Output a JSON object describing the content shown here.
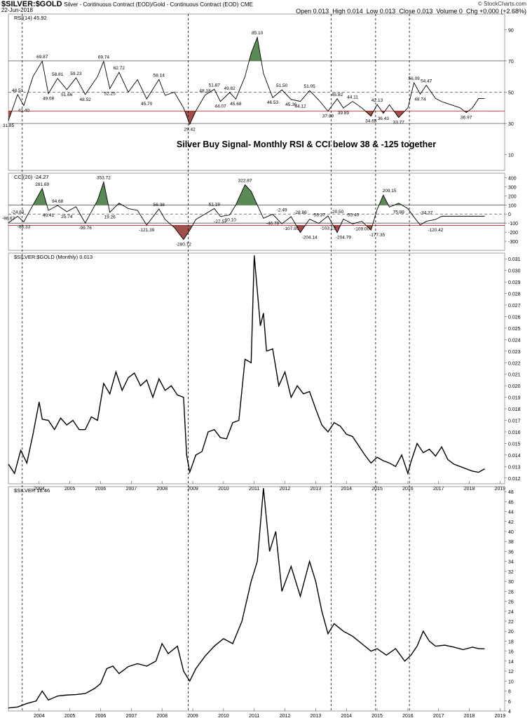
{
  "header": {
    "symbol": "$SILVER:$GOLD",
    "description": "Silver - Continuous Contract (EOD)/Gold - Continuous Contract (EOD)",
    "exchange": "CME",
    "date": "22-Jun-2018",
    "open": "Open 0.013",
    "high": "High 0.014",
    "low": "Low 0.013",
    "close": "Close 0.013",
    "volume": "Volume 0",
    "chg": "Chg +0.000 (+2.68%)",
    "credit": "© StockCharts.com"
  },
  "annotation": "Silver Buy Signal- Monthly RSI & CCI below 38 & -125 together",
  "colors": {
    "line": "#000000",
    "green_fill": "#5a8a55",
    "red_fill": "#a0504a",
    "red_line": "#c00000",
    "grid": "#dddddd"
  },
  "signal_years": [
    2003.45,
    2008.85,
    2013.5,
    2014.95,
    2016.05
  ],
  "chart_data": [
    {
      "type": "line",
      "name": "RSI",
      "title": "RSI(14) 45.92",
      "ylim": [
        0,
        100
      ],
      "yticks": [
        10,
        30,
        50,
        70,
        90
      ],
      "levels": [
        30,
        38,
        50,
        70
      ],
      "x": [
        2003.0,
        2003.3,
        2003.5,
        2003.8,
        2004.1,
        2004.3,
        2004.6,
        2004.9,
        2005.2,
        2005.5,
        2005.9,
        2006.1,
        2006.3,
        2006.6,
        2006.9,
        2007.2,
        2007.5,
        2007.9,
        2008.1,
        2008.4,
        2008.7,
        2008.9,
        2009.1,
        2009.4,
        2009.7,
        2009.9,
        2010.2,
        2010.4,
        2010.7,
        2010.9,
        2011.1,
        2011.3,
        2011.6,
        2011.9,
        2012.2,
        2012.5,
        2012.8,
        2013.1,
        2013.4,
        2013.7,
        2013.9,
        2014.2,
        2014.5,
        2014.8,
        2015.0,
        2015.2,
        2015.4,
        2015.7,
        2016.0,
        2016.2,
        2016.4,
        2016.6,
        2016.9,
        2017.1,
        2017.4,
        2017.7,
        2017.9,
        2018.1,
        2018.3,
        2018.5
      ],
      "values": [
        31.85,
        48.51,
        41.4,
        60.0,
        69.87,
        49.08,
        58.81,
        51.66,
        59.23,
        48.52,
        60.0,
        69.74,
        52.25,
        62.72,
        50.0,
        58.0,
        45.7,
        58.14,
        48.0,
        50.0,
        40.0,
        29.42,
        38.0,
        48.18,
        51.87,
        44.07,
        49.82,
        45.68,
        60.0,
        75.0,
        85.1,
        62.0,
        46.53,
        51.5,
        45.36,
        44.12,
        51.05,
        45.0,
        37.89,
        45.82,
        39.89,
        44.11,
        40.0,
        34.65,
        42.13,
        36.43,
        42.0,
        33.77,
        40.0,
        56.09,
        48.74,
        54.47,
        46.0,
        44.0,
        42.0,
        40.0,
        36.97,
        40.0,
        45.92,
        45.92
      ],
      "point_labels": [
        {
          "x": 2003.0,
          "y": 31.85,
          "t": "31.85",
          "pos": "below"
        },
        {
          "x": 2003.3,
          "y": 48.51,
          "t": "48.51",
          "pos": "above"
        },
        {
          "x": 2003.5,
          "y": 41.4,
          "t": "41.40",
          "pos": "below"
        },
        {
          "x": 2004.1,
          "y": 69.87,
          "t": "69.87",
          "pos": "above"
        },
        {
          "x": 2004.3,
          "y": 49.08,
          "t": "49.08",
          "pos": "below"
        },
        {
          "x": 2004.6,
          "y": 58.81,
          "t": "58.81",
          "pos": "above"
        },
        {
          "x": 2004.9,
          "y": 51.66,
          "t": "51.66",
          "pos": "below"
        },
        {
          "x": 2005.2,
          "y": 59.23,
          "t": "59.23",
          "pos": "above"
        },
        {
          "x": 2005.5,
          "y": 48.52,
          "t": "48.52",
          "pos": "below"
        },
        {
          "x": 2006.1,
          "y": 69.74,
          "t": "69.74",
          "pos": "above"
        },
        {
          "x": 2006.3,
          "y": 52.25,
          "t": "52.25",
          "pos": "below"
        },
        {
          "x": 2006.6,
          "y": 62.72,
          "t": "62.72",
          "pos": "above"
        },
        {
          "x": 2007.5,
          "y": 45.7,
          "t": "45.70",
          "pos": "below"
        },
        {
          "x": 2007.9,
          "y": 58.14,
          "t": "58.14",
          "pos": "above"
        },
        {
          "x": 2008.9,
          "y": 29.42,
          "t": "29.42",
          "pos": "below"
        },
        {
          "x": 2009.4,
          "y": 48.18,
          "t": "48.18",
          "pos": "above"
        },
        {
          "x": 2009.7,
          "y": 51.87,
          "t": "51.87",
          "pos": "above"
        },
        {
          "x": 2009.9,
          "y": 44.07,
          "t": "44.07",
          "pos": "below"
        },
        {
          "x": 2010.2,
          "y": 49.82,
          "t": "49.82",
          "pos": "above"
        },
        {
          "x": 2010.4,
          "y": 45.68,
          "t": "45.68",
          "pos": "below"
        },
        {
          "x": 2011.1,
          "y": 85.1,
          "t": "85.10",
          "pos": "above"
        },
        {
          "x": 2011.6,
          "y": 46.53,
          "t": "46.53",
          "pos": "below"
        },
        {
          "x": 2011.9,
          "y": 51.5,
          "t": "51.50",
          "pos": "above"
        },
        {
          "x": 2012.2,
          "y": 45.36,
          "t": "45.36",
          "pos": "below"
        },
        {
          "x": 2012.5,
          "y": 44.12,
          "t": "44.12",
          "pos": "below"
        },
        {
          "x": 2012.8,
          "y": 51.05,
          "t": "51.05",
          "pos": "above"
        },
        {
          "x": 2013.4,
          "y": 37.89,
          "t": "37.89",
          "pos": "below"
        },
        {
          "x": 2013.7,
          "y": 45.82,
          "t": "45.82",
          "pos": "above"
        },
        {
          "x": 2013.9,
          "y": 39.89,
          "t": "39.89",
          "pos": "below"
        },
        {
          "x": 2014.2,
          "y": 44.11,
          "t": "44.11",
          "pos": "above"
        },
        {
          "x": 2014.8,
          "y": 34.65,
          "t": "34.65",
          "pos": "below"
        },
        {
          "x": 2015.0,
          "y": 42.13,
          "t": "42.13",
          "pos": "above"
        },
        {
          "x": 2015.2,
          "y": 36.43,
          "t": "36.43",
          "pos": "below"
        },
        {
          "x": 2015.7,
          "y": 33.77,
          "t": "33.77",
          "pos": "below"
        },
        {
          "x": 2016.2,
          "y": 56.09,
          "t": "56.09",
          "pos": "above"
        },
        {
          "x": 2016.4,
          "y": 48.74,
          "t": "48.74",
          "pos": "below"
        },
        {
          "x": 2016.6,
          "y": 54.47,
          "t": "54.47",
          "pos": "above"
        },
        {
          "x": 2017.9,
          "y": 36.97,
          "t": "36.97",
          "pos": "below"
        }
      ]
    },
    {
      "type": "line",
      "name": "CCI",
      "title": "CCI(20) -24.27",
      "ylim": [
        -400,
        450
      ],
      "yticks": [
        -300,
        -200,
        -100,
        0,
        100,
        200,
        300,
        400
      ],
      "levels": [
        -125,
        -100,
        0,
        100
      ],
      "x": [
        2003.0,
        2003.3,
        2003.5,
        2003.8,
        2004.1,
        2004.3,
        2004.6,
        2004.9,
        2005.2,
        2005.5,
        2005.9,
        2006.1,
        2006.3,
        2006.6,
        2006.9,
        2007.2,
        2007.5,
        2007.9,
        2008.1,
        2008.4,
        2008.7,
        2008.9,
        2009.1,
        2009.4,
        2009.7,
        2009.9,
        2010.2,
        2010.4,
        2010.7,
        2010.9,
        2011.1,
        2011.3,
        2011.6,
        2011.9,
        2012.2,
        2012.5,
        2012.8,
        2013.1,
        2013.4,
        2013.7,
        2013.9,
        2014.2,
        2014.5,
        2014.8,
        2015.0,
        2015.2,
        2015.4,
        2015.7,
        2016.0,
        2016.2,
        2016.4,
        2016.6,
        2016.9,
        2017.1,
        2017.4,
        2017.7,
        2017.9,
        2018.1,
        2018.3,
        2018.5
      ],
      "values": [
        -96.67,
        -24.83,
        -86.33,
        100,
        281.69,
        40.41,
        94.68,
        25.74,
        80,
        -99.76,
        150,
        353.72,
        19.26,
        120,
        60,
        40,
        -121.39,
        56.38,
        -60,
        -150,
        -280.72,
        -180,
        -60,
        0,
        61.19,
        -27.57,
        -10.1,
        100,
        322.87,
        250,
        100,
        -46.78,
        -2.49,
        -107.95,
        -28.86,
        -204.14,
        -56.37,
        -103.13,
        -20.5,
        -204.79,
        -55.4,
        -109.0,
        -80,
        -177.35,
        50,
        209.15,
        75.88,
        120,
        60,
        -34.37,
        -120.42,
        -80,
        -60,
        -24.27,
        -24.27,
        -24.27,
        -24.27,
        -24.27,
        -24.27,
        -24.27
      ],
      "point_labels": [
        {
          "x": 2003.0,
          "y": -96.67,
          "t": "-96.67",
          "pos": "above"
        },
        {
          "x": 2003.3,
          "y": -24.83,
          "t": "-24.83",
          "pos": "above"
        },
        {
          "x": 2003.5,
          "y": -86.33,
          "t": "-86.33",
          "pos": "below"
        },
        {
          "x": 2004.1,
          "y": 281.69,
          "t": "281.69",
          "pos": "above"
        },
        {
          "x": 2004.3,
          "y": 40.41,
          "t": "40.41",
          "pos": "below"
        },
        {
          "x": 2004.6,
          "y": 94.68,
          "t": "94.68",
          "pos": "above"
        },
        {
          "x": 2004.9,
          "y": 25.74,
          "t": "25.74",
          "pos": "below"
        },
        {
          "x": 2005.5,
          "y": -99.76,
          "t": "-99.76",
          "pos": "below"
        },
        {
          "x": 2006.1,
          "y": 353.72,
          "t": "353.72",
          "pos": "above"
        },
        {
          "x": 2006.3,
          "y": 19.26,
          "t": "19.26",
          "pos": "below"
        },
        {
          "x": 2007.5,
          "y": -121.39,
          "t": "-121.39",
          "pos": "below"
        },
        {
          "x": 2007.9,
          "y": 56.38,
          "t": "56.38",
          "pos": "above"
        },
        {
          "x": 2008.7,
          "y": -280.72,
          "t": "-280.72",
          "pos": "below"
        },
        {
          "x": 2009.7,
          "y": 61.19,
          "t": "61.19",
          "pos": "above"
        },
        {
          "x": 2009.9,
          "y": -27.57,
          "t": "-27.57",
          "pos": "below"
        },
        {
          "x": 2010.2,
          "y": -10.1,
          "t": "-10.10",
          "pos": "below"
        },
        {
          "x": 2010.7,
          "y": 322.87,
          "t": "322.87",
          "pos": "above"
        },
        {
          "x": 2011.6,
          "y": -46.78,
          "t": "-46.78",
          "pos": "below"
        },
        {
          "x": 2011.9,
          "y": -2.49,
          "t": "-2.49",
          "pos": "above"
        },
        {
          "x": 2012.2,
          "y": -107.95,
          "t": "-107.95",
          "pos": "below"
        },
        {
          "x": 2012.5,
          "y": -28.86,
          "t": "-28.86",
          "pos": "above"
        },
        {
          "x": 2012.8,
          "y": -204.14,
          "t": "-204.14",
          "pos": "below"
        },
        {
          "x": 2013.1,
          "y": -56.37,
          "t": "-56.37",
          "pos": "above"
        },
        {
          "x": 2013.4,
          "y": -103.13,
          "t": "-103.13",
          "pos": "below"
        },
        {
          "x": 2013.7,
          "y": -20.5,
          "t": "-20.50",
          "pos": "above"
        },
        {
          "x": 2013.9,
          "y": -204.79,
          "t": "-204.79",
          "pos": "below"
        },
        {
          "x": 2014.2,
          "y": -55.4,
          "t": "-55.40",
          "pos": "above"
        },
        {
          "x": 2014.5,
          "y": -109.0,
          "t": "-109.00",
          "pos": "below"
        },
        {
          "x": 2015.0,
          "y": -177.35,
          "t": "-177.35",
          "pos": "below"
        },
        {
          "x": 2015.4,
          "y": 209.15,
          "t": "209.15",
          "pos": "above"
        },
        {
          "x": 2015.7,
          "y": 75.88,
          "t": "75.88",
          "pos": "below"
        },
        {
          "x": 2016.6,
          "y": -34.37,
          "t": "-34.37",
          "pos": "above"
        },
        {
          "x": 2016.9,
          "y": -120.42,
          "t": "-120.42",
          "pos": "below"
        }
      ]
    },
    {
      "type": "line",
      "name": "$SILVER:$GOLD (Monthly) 0.013",
      "title": "$SILVER:$GOLD (Monthly) 0.013",
      "ylim": [
        0.0115,
        0.0315
      ],
      "yticks": [
        0.012,
        0.013,
        0.014,
        0.015,
        0.016,
        0.017,
        0.018,
        0.019,
        0.02,
        0.021,
        0.022,
        0.023,
        0.024,
        0.025,
        0.026,
        0.027,
        0.028,
        0.029,
        0.03,
        0.031
      ],
      "x": [
        2003.0,
        2003.2,
        2003.4,
        2003.6,
        2003.8,
        2004.0,
        2004.1,
        2004.3,
        2004.5,
        2004.7,
        2004.9,
        2005.1,
        2005.3,
        2005.5,
        2005.7,
        2005.9,
        2006.1,
        2006.3,
        2006.5,
        2006.7,
        2006.9,
        2007.1,
        2007.3,
        2007.5,
        2007.7,
        2007.9,
        2008.1,
        2008.3,
        2008.5,
        2008.7,
        2008.8,
        2008.9,
        2009.1,
        2009.3,
        2009.5,
        2009.7,
        2009.9,
        2010.1,
        2010.3,
        2010.5,
        2010.7,
        2010.9,
        2011.0,
        2011.2,
        2011.3,
        2011.4,
        2011.6,
        2011.8,
        2012.0,
        2012.2,
        2012.4,
        2012.6,
        2012.8,
        2013.0,
        2013.2,
        2013.4,
        2013.6,
        2013.8,
        2014.0,
        2014.2,
        2014.4,
        2014.6,
        2014.8,
        2015.0,
        2015.2,
        2015.4,
        2015.6,
        2015.8,
        2016.0,
        2016.1,
        2016.3,
        2016.5,
        2016.7,
        2016.9,
        2017.1,
        2017.3,
        2017.5,
        2017.7,
        2017.9,
        2018.1,
        2018.3,
        2018.5
      ],
      "values": [
        0.0132,
        0.0124,
        0.0144,
        0.0133,
        0.0158,
        0.0186,
        0.0171,
        0.017,
        0.0162,
        0.0172,
        0.0166,
        0.017,
        0.0162,
        0.0162,
        0.0173,
        0.017,
        0.0202,
        0.0193,
        0.0212,
        0.0196,
        0.0207,
        0.0211,
        0.02,
        0.0205,
        0.019,
        0.0206,
        0.0196,
        0.02,
        0.0192,
        0.019,
        0.014,
        0.0125,
        0.014,
        0.0143,
        0.016,
        0.0162,
        0.0155,
        0.0154,
        0.0168,
        0.017,
        0.0223,
        0.022,
        0.0313,
        0.0252,
        0.0263,
        0.023,
        0.0232,
        0.02,
        0.0212,
        0.019,
        0.02,
        0.0193,
        0.0195,
        0.018,
        0.0166,
        0.016,
        0.0168,
        0.0165,
        0.0158,
        0.0156,
        0.0148,
        0.014,
        0.0133,
        0.0138,
        0.0135,
        0.0133,
        0.013,
        0.014,
        0.0124,
        0.0134,
        0.015,
        0.0142,
        0.0145,
        0.0139,
        0.0147,
        0.0136,
        0.0132,
        0.013,
        0.0128,
        0.0126,
        0.0125,
        0.0128
      ],
      "xticks": [
        2004,
        2005,
        2006,
        2007,
        2008,
        2009,
        2010,
        2011,
        2012,
        2013,
        2014,
        2015,
        2016,
        2017,
        2018,
        2019
      ]
    },
    {
      "type": "line",
      "name": "$SILVER 16.46",
      "title": "$SILVER 16.46",
      "ylim": [
        4,
        49
      ],
      "yticks": [
        4,
        6,
        8,
        10,
        12,
        14,
        16,
        18,
        20,
        22,
        24,
        26,
        28,
        30,
        32,
        34,
        36,
        38,
        40,
        42,
        44,
        46,
        48
      ],
      "x": [
        2003.0,
        2003.3,
        2003.6,
        2003.9,
        2004.1,
        2004.3,
        2004.6,
        2004.9,
        2005.2,
        2005.5,
        2005.8,
        2006.0,
        2006.2,
        2006.4,
        2006.6,
        2006.9,
        2007.2,
        2007.5,
        2007.8,
        2008.0,
        2008.2,
        2008.5,
        2008.7,
        2008.9,
        2009.1,
        2009.4,
        2009.7,
        2010.0,
        2010.3,
        2010.6,
        2010.9,
        2011.1,
        2011.3,
        2011.5,
        2011.7,
        2011.9,
        2012.2,
        2012.5,
        2012.8,
        2013.0,
        2013.2,
        2013.4,
        2013.6,
        2013.9,
        2014.2,
        2014.5,
        2014.8,
        2015.0,
        2015.3,
        2015.6,
        2015.9,
        2016.1,
        2016.3,
        2016.5,
        2016.7,
        2016.9,
        2017.2,
        2017.5,
        2017.8,
        2018.1,
        2018.3,
        2018.5
      ],
      "values": [
        4.6,
        4.8,
        5.5,
        6.0,
        8.0,
        6.2,
        7.0,
        7.2,
        7.3,
        7.5,
        8.5,
        9.5,
        12.5,
        13.0,
        11.5,
        12.9,
        13.5,
        13.0,
        14.0,
        17.5,
        15.5,
        17.0,
        12.0,
        10.0,
        12.5,
        15.0,
        17.0,
        18.5,
        17.5,
        22.0,
        30.0,
        34.0,
        48.7,
        36.0,
        40.0,
        28.0,
        33.0,
        27.0,
        34.0,
        30.0,
        24.0,
        19.5,
        21.5,
        20.0,
        19.0,
        17.5,
        16.0,
        16.5,
        15.2,
        16.5,
        14.0,
        15.2,
        17.0,
        20.0,
        18.0,
        17.0,
        17.2,
        16.8,
        16.3,
        16.8,
        16.5,
        16.46
      ],
      "xticks": [
        2004,
        2005,
        2006,
        2007,
        2008,
        2009,
        2010,
        2011,
        2012,
        2013,
        2014,
        2015,
        2016,
        2017,
        2018,
        2019
      ]
    }
  ]
}
